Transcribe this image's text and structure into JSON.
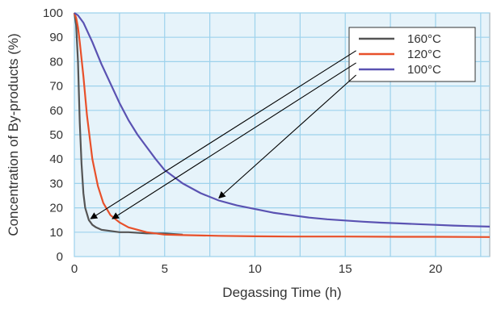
{
  "chart_data": {
    "type": "line",
    "xlabel": "Degassing Time (h)",
    "ylabel": "Concentration of By-products (%)",
    "xlim": [
      0,
      23
    ],
    "ylim": [
      0,
      100
    ],
    "xticks": [
      0,
      5,
      10,
      15,
      20
    ],
    "yticks": [
      0,
      10,
      20,
      30,
      40,
      50,
      60,
      70,
      80,
      90,
      100
    ],
    "grid": true,
    "background": "#e6f3fa",
    "gridColor": "#9dd2ec",
    "legend_position": "top-right",
    "series": [
      {
        "name": "160°C",
        "color": "#555555",
        "x": [
          0,
          0.1,
          0.2,
          0.3,
          0.4,
          0.5,
          0.6,
          0.8,
          1.0,
          1.2,
          1.5,
          2.0,
          2.5,
          3.0,
          4.0,
          5.0,
          6.0
        ],
        "y": [
          100,
          95,
          80,
          55,
          38,
          26,
          20,
          15,
          13,
          12,
          11,
          10.5,
          10,
          10,
          9.5,
          9.5,
          9
        ]
      },
      {
        "name": "120°C",
        "color": "#e8502a",
        "x": [
          0,
          0.1,
          0.2,
          0.3,
          0.5,
          0.7,
          1.0,
          1.3,
          1.6,
          2.0,
          2.5,
          3.0,
          3.5,
          4.0,
          5.0,
          6.0,
          8.0,
          10.0,
          12.0,
          15.0,
          18.0,
          20.0,
          23.0
        ],
        "y": [
          100,
          98,
          94,
          88,
          74,
          58,
          40,
          29,
          22,
          17,
          14,
          12,
          11,
          10,
          9,
          8.8,
          8.5,
          8.3,
          8.2,
          8.2,
          8.1,
          8.1,
          8.0
        ]
      },
      {
        "name": "100°C",
        "color": "#5a52b2",
        "x": [
          0,
          0.2,
          0.5,
          1.0,
          1.5,
          2.0,
          2.5,
          3.0,
          3.5,
          4.0,
          4.5,
          5.0,
          6.0,
          7.0,
          8.0,
          9.0,
          10.0,
          11.0,
          12.0,
          13.0,
          14.0,
          15.0,
          16.0,
          17.0,
          18.0,
          19.0,
          20.0,
          21.0,
          22.0,
          23.0
        ],
        "y": [
          100,
          99,
          96,
          88,
          79,
          71,
          63,
          56,
          50,
          45,
          40,
          35.5,
          30,
          26,
          23,
          21,
          19.5,
          18,
          17,
          16,
          15.3,
          14.8,
          14.3,
          13.9,
          13.6,
          13.3,
          13.0,
          12.7,
          12.5,
          12.3
        ]
      }
    ],
    "arrows": [
      {
        "from": [
          15.6,
          84.5
        ],
        "to": [
          0.9,
          15.5
        ]
      },
      {
        "from": [
          15.6,
          79.5
        ],
        "to": [
          2.1,
          15.5
        ]
      },
      {
        "from": [
          15.6,
          74.5
        ],
        "to": [
          8.0,
          24.0
        ]
      }
    ]
  }
}
